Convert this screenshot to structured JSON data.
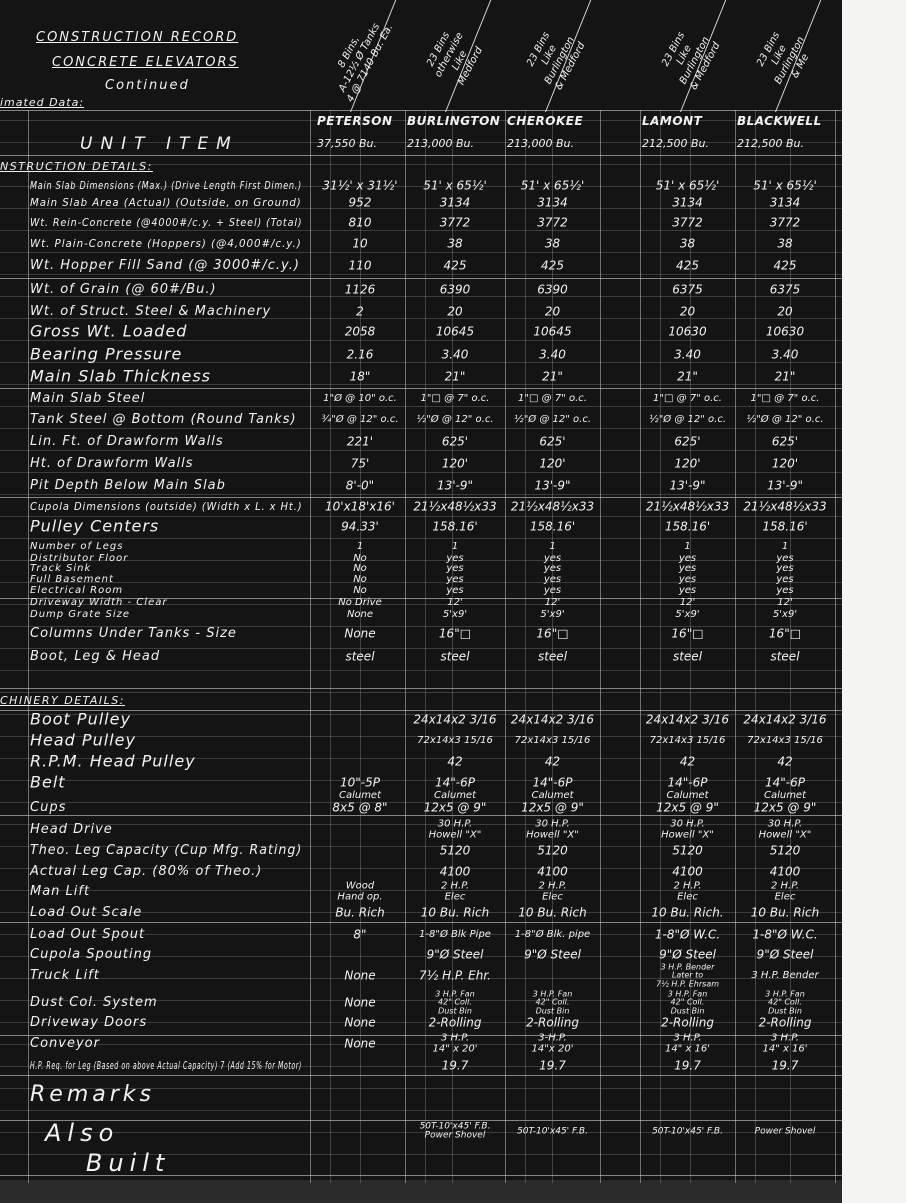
{
  "header": {
    "title_1": "CONSTRUCTION RECORD",
    "title_2": "CONCRETE ELEVATORS",
    "subtitle": "Continued",
    "estimated_note": "imated Data:",
    "unit_item": "UNIT ITEM"
  },
  "columns": [
    {
      "name": "PETERSON",
      "capacity": "37,550 Bu.",
      "note": "8 Bins,\nA-12½ Ø Tanks\n4 @ 7140 Bu. Ea."
    },
    {
      "name": "BURLINGTON",
      "capacity": "213,000 Bu.",
      "note": "23 Bins\notherwise\nLike\nMedford"
    },
    {
      "name": "CHEROKEE",
      "capacity": "213,000 Bu.",
      "note": "23 Bins\nLike\nBurlington\n& Medford"
    },
    {
      "name": "LAMONT",
      "capacity": "212,500 Bu.",
      "note": "23 Bins\nLike\nBurlington\n& Medford"
    },
    {
      "name": "BLACKWELL",
      "capacity": "212,500 Bu.",
      "note": "23 Bins\nLike\nBurlington\n& Me"
    }
  ],
  "sections": {
    "construction": "NSTRUCTION DETAILS:",
    "machinery": "CHINERY DETAILS:"
  },
  "rows": [
    {
      "label": "Main Slab Dimensions (Max.) (Drive Length First Dimen.)",
      "values": [
        "31½' x 31½'",
        "51' x 65½'",
        "51' x 65½'",
        "51' x 65½'",
        "51' x 65½'"
      ]
    },
    {
      "label": "Main Slab Area (Actual) (Outside, on Ground)",
      "values": [
        "952",
        "3134",
        "3134",
        "3134",
        "3134"
      ]
    },
    {
      "label": "Wt. Rein-Concrete (@4000#/c.y. + Steel) (Total)",
      "values": [
        "810",
        "3772",
        "3772",
        "3772",
        "3772"
      ]
    },
    {
      "label": "Wt. Plain-Concrete (Hoppers) (@4,000#/c.y.)",
      "values": [
        "10",
        "38",
        "38",
        "38",
        "38"
      ]
    },
    {
      "label": "Wt. Hopper Fill Sand (@ 3000#/c.y.)",
      "values": [
        "110",
        "425",
        "425",
        "425",
        "425"
      ]
    },
    {
      "label": "Wt. of Grain (@ 60#/Bu.)",
      "values": [
        "1126",
        "6390",
        "6390",
        "6375",
        "6375"
      ]
    },
    {
      "label": "Wt. of Struct. Steel & Machinery",
      "values": [
        "2",
        "20",
        "20",
        "20",
        "20"
      ]
    },
    {
      "label": "Gross Wt. Loaded",
      "values": [
        "2058",
        "10645",
        "10645",
        "10630",
        "10630"
      ]
    },
    {
      "label": "Bearing Pressure",
      "values": [
        "2.16",
        "3.40",
        "3.40",
        "3.40",
        "3.40"
      ]
    },
    {
      "label": "Main Slab Thickness",
      "values": [
        "18\"",
        "21\"",
        "21\"",
        "21\"",
        "21\""
      ]
    },
    {
      "label": "Main Slab Steel",
      "values": [
        "1\"Ø @ 10\" o.c.",
        "1\"□ @ 7\" o.c.",
        "1\"□ @ 7\" o.c.",
        "1\"□ @ 7\" o.c.",
        "1\"□ @ 7\" o.c."
      ]
    },
    {
      "label": "Tank Steel @ Bottom (Round Tanks)",
      "values": [
        "¾\"Ø @ 12\" o.c.",
        "½\"Ø @ 12\" o.c.",
        "½\"Ø @ 12\" o.c.",
        "½\"Ø @ 12\" o.c.",
        "½\"Ø @ 12\" o.c."
      ]
    },
    {
      "label": "Lin. Ft. of Drawform Walls",
      "values": [
        "221'",
        "625'",
        "625'",
        "625'",
        "625'"
      ]
    },
    {
      "label": "Ht. of Drawform Walls",
      "values": [
        "75'",
        "120'",
        "120'",
        "120'",
        "120'"
      ]
    },
    {
      "label": "Pit Depth Below Main Slab",
      "values": [
        "8'-0\"",
        "13'-9\"",
        "13'-9\"",
        "13'-9\"",
        "13'-9\""
      ]
    },
    {
      "label": "Cupola Dimensions (outside) (Width x L. x Ht.)",
      "values": [
        "10'x18'x16'",
        "21½x48½x33",
        "21½x48½x33",
        "21½x48½x33",
        "21½x48½x33"
      ]
    },
    {
      "label": "Pulley Centers",
      "values": [
        "94.33'",
        "158.16'",
        "158.16'",
        "158.16'",
        "158.16'"
      ]
    },
    {
      "label": "Number of Legs",
      "values": [
        "1",
        "1",
        "1",
        "1",
        "1"
      ]
    },
    {
      "label": "Distributor Floor",
      "values": [
        "No",
        "yes",
        "yes",
        "yes",
        "yes"
      ]
    },
    {
      "label": "Track Sink",
      "values": [
        "No",
        "yes",
        "yes",
        "yes",
        "yes"
      ]
    },
    {
      "label": "Full Basement",
      "values": [
        "No",
        "yes",
        "yes",
        "yes",
        "yes"
      ]
    },
    {
      "label": "Electrical Room",
      "values": [
        "No",
        "yes",
        "yes",
        "yes",
        "yes"
      ]
    },
    {
      "label": "Driveway Width - Clear",
      "values": [
        "No Drive",
        "12'",
        "12'",
        "12'",
        "12'"
      ]
    },
    {
      "label": "Dump Grate Size",
      "values": [
        "None",
        "5'x9'",
        "5'x9'",
        "5'x9'",
        "5'x9'"
      ]
    },
    {
      "label": "Columns Under Tanks - Size",
      "values": [
        "None",
        "16\"□",
        "16\"□",
        "16\"□",
        "16\"□"
      ]
    },
    {
      "label": "Boot, Leg & Head",
      "values": [
        "steel",
        "steel",
        "steel",
        "steel",
        "steel"
      ]
    },
    {
      "label": "Boot Pulley",
      "values": [
        "",
        "24x14x2 3/16",
        "24x14x2 3/16",
        "24x14x2 3/16",
        "24x14x2 3/16"
      ]
    },
    {
      "label": "Head Pulley",
      "values": [
        "",
        "72x14x3 15/16",
        "72x14x3 15/16",
        "72x14x3 15/16",
        "72x14x3 15/16"
      ]
    },
    {
      "label": "R.P.M. Head Pulley",
      "values": [
        "",
        "42",
        "42",
        "42",
        "42"
      ]
    },
    {
      "label": "Belt",
      "values": [
        "10\"-5P",
        "14\"-6P",
        "14\"-6P",
        "14\"-6P",
        "14\"-6P"
      ]
    },
    {
      "label": "",
      "values": [
        "Calumet",
        "Calumet",
        "Calumet",
        "Calumet",
        "Calumet"
      ]
    },
    {
      "label": "Cups",
      "values": [
        "8x5 @ 8\"",
        "12x5 @ 9\"",
        "12x5 @ 9\"",
        "12x5 @ 9\"",
        "12x5 @ 9\""
      ]
    },
    {
      "label": "Head Drive",
      "values": [
        "",
        "30 H.P.\nHowell \"X\"",
        "30 H.P.\nHowell \"X\"",
        "30 H.P.\nHowell \"X\"",
        "30 H.P.\nHowell \"X\""
      ]
    },
    {
      "label": "Theo. Leg Capacity (Cup Mfg. Rating)",
      "values": [
        "",
        "5120",
        "5120",
        "5120",
        "5120"
      ]
    },
    {
      "label": "Actual Leg Cap. (80% of Theo.)",
      "values": [
        "",
        "4100",
        "4100",
        "4100",
        "4100"
      ]
    },
    {
      "label": "Man Lift",
      "values": [
        "Wood\nHand op.",
        "2 H.P.\nElec",
        "2 H.P.\nElec",
        "2 H.P.\nElec",
        "2 H.P.\nElec"
      ]
    },
    {
      "label": "Load Out Scale",
      "values": [
        "Bu. Rich",
        "10 Bu. Rich",
        "10 Bu. Rich",
        "10 Bu. Rich.",
        "10 Bu. Rich"
      ]
    },
    {
      "label": "Load Out Spout",
      "values": [
        "8\"",
        "1-8\"Ø Blk Pipe",
        "1-8\"Ø Blk. pipe",
        "1-8\"Ø W.C.",
        "1-8\"Ø W.C."
      ]
    },
    {
      "label": "Cupola Spouting",
      "values": [
        "",
        "9\"Ø Steel",
        "9\"Ø Steel",
        "9\"Ø Steel",
        "9\"Ø Steel"
      ]
    },
    {
      "label": "Truck Lift",
      "values": [
        "None",
        "7½ H.P. Ehr.",
        "",
        "3 H.P. Bender\nLater to\n7½ H.P. Ehrsam",
        "3 H.P. Bender"
      ]
    },
    {
      "label": "Dust Col. System",
      "values": [
        "None",
        "3 H.P. Fan\n42\" Coll.\nDust Bin",
        "3 H.P. Fan\n42\" Coll.\nDust Bin",
        "3 H.P. Fan\n42\" Coll.\nDust Bin",
        "3 H.P. Fan\n42\" Coll.\nDust Bin"
      ]
    },
    {
      "label": "Driveway Doors",
      "values": [
        "None",
        "2-Rolling",
        "2-Rolling",
        "2-Rolling",
        "2-Rolling"
      ]
    },
    {
      "label": "Conveyor",
      "values": [
        "None",
        "3 H.P.\n14\" x 20'",
        "3-H.P.\n14\"x 20'",
        "3 H.P.\n14\" x 16'",
        "3 H.P.\n14\" x 16'"
      ]
    },
    {
      "label": "H.P. Req. for Leg (Based on above Actual Capacity) 7 (Add 15% for Motor)",
      "values": [
        "",
        "19.7",
        "19.7",
        "19.7",
        "19.7"
      ]
    }
  ],
  "remarks": {
    "label": "Remarks",
    "also_built": "Also\n   Built",
    "values": [
      "",
      "50T-10'x45' F.B.\nPower Shovel",
      "50T-10'x45' F.B.",
      "50T-10'x45' F.B.",
      "Power Shovel"
    ]
  }
}
